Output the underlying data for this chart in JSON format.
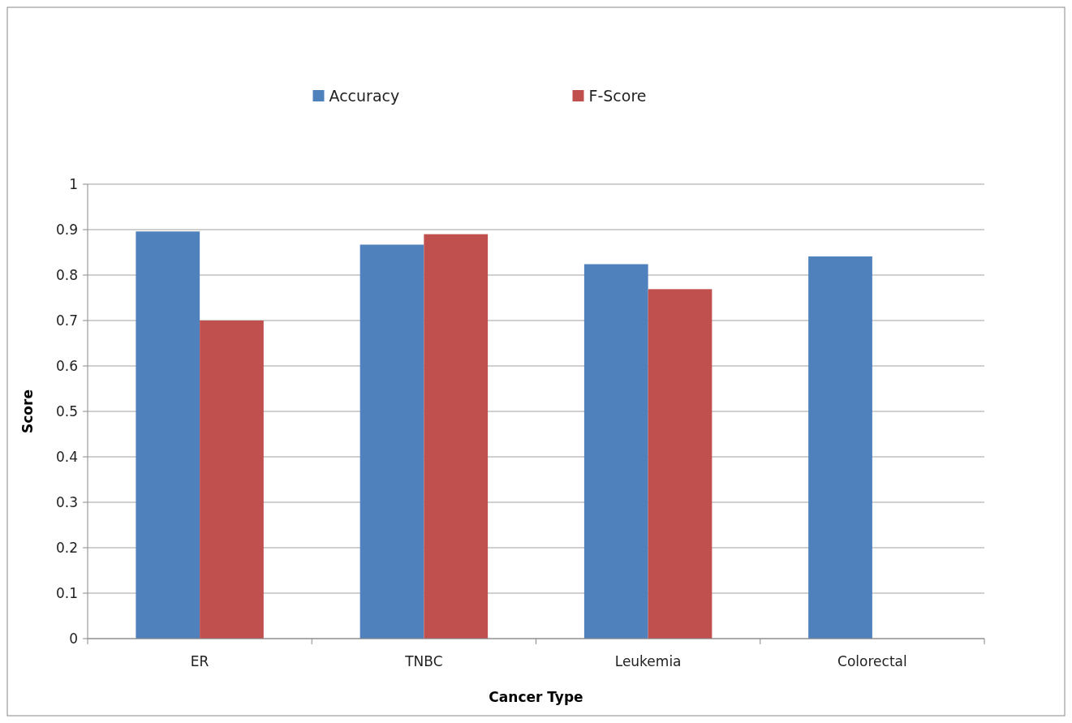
{
  "chart_data": {
    "type": "bar",
    "xlabel": "Cancer Type",
    "ylabel": "Score",
    "categories": [
      "ER",
      "TNBC",
      "Leukemia",
      "Colorectal"
    ],
    "series": [
      {
        "name": "Accuracy",
        "color": "#4f81bd",
        "values": [
          0.896,
          0.867,
          0.824,
          0.841
        ]
      },
      {
        "name": "F-Score",
        "color": "#c0504d",
        "values": [
          0.7,
          0.89,
          0.769,
          null
        ]
      }
    ],
    "ylim": [
      0,
      1
    ],
    "yticks": [
      0,
      0.1,
      0.2,
      0.3,
      0.4,
      0.5,
      0.6,
      0.7,
      0.8,
      0.9,
      1
    ],
    "grid": "y",
    "legend": "top"
  }
}
